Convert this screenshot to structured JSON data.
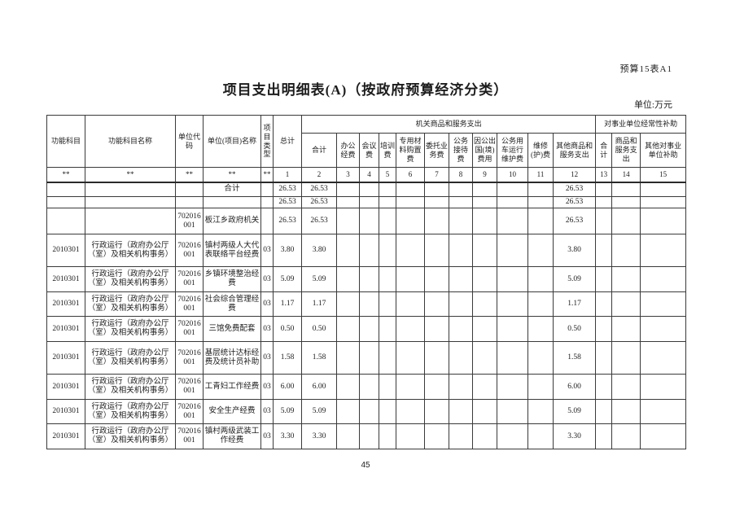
{
  "page": {
    "form_tag": "预算15表A1",
    "title": "项目支出明细表(A)（按政府预算经济分类）",
    "unit_label": "单位:万元",
    "page_number": "45"
  },
  "table": {
    "left_headers": [
      "功能科目",
      "功能科目名称",
      "单位代码",
      "单位(项目)名称",
      "项目类型",
      "总计"
    ],
    "groups": [
      {
        "label": "机关商品和服务支出"
      },
      {
        "label": "对事业单位经常性补助"
      }
    ],
    "sub_headers": [
      "合计",
      "办公经费",
      "会议费",
      "培训费",
      "专用材料购置费",
      "委托业务费",
      "公务接待费",
      "因公出国(境)费用",
      "公务用车运行维护费",
      "维修(护)费",
      "其他商品和服务支出",
      "合计",
      "商品和服务支出",
      "其他对事业单位补助"
    ],
    "code_row": [
      "**",
      "**",
      "**",
      "**",
      "**",
      "1",
      "2",
      "3",
      "4",
      "5",
      "6",
      "7",
      "8",
      "9",
      "10",
      "11",
      "12",
      "13",
      "14",
      "15"
    ],
    "rows": [
      [
        "",
        "",
        "",
        "合计",
        "",
        "26.53",
        "26.53",
        "",
        "",
        "",
        "",
        "",
        "",
        "",
        "",
        "",
        "26.53",
        "",
        "",
        ""
      ],
      [
        "",
        "",
        "",
        "",
        "",
        "26.53",
        "26.53",
        "",
        "",
        "",
        "",
        "",
        "",
        "",
        "",
        "",
        "26.53",
        "",
        "",
        ""
      ],
      [
        "",
        "",
        "702016001",
        "板江乡政府机关",
        "",
        "26.53",
        "26.53",
        "",
        "",
        "",
        "",
        "",
        "",
        "",
        "",
        "",
        "26.53",
        "",
        "",
        ""
      ],
      [
        "2010301",
        "行政运行（政府办公厅（室）及相关机构事务）",
        "702016001",
        "镇村两级人大代表联络平台经费",
        "03",
        "3.80",
        "3.80",
        "",
        "",
        "",
        "",
        "",
        "",
        "",
        "",
        "",
        "3.80",
        "",
        "",
        ""
      ],
      [
        "2010301",
        "行政运行（政府办公厅（室）及相关机构事务）",
        "702016001",
        "乡镇环境整治经费",
        "03",
        "5.09",
        "5.09",
        "",
        "",
        "",
        "",
        "",
        "",
        "",
        "",
        "",
        "5.09",
        "",
        "",
        ""
      ],
      [
        "2010301",
        "行政运行（政府办公厅（室）及相关机构事务）",
        "702016001",
        "社会综合管理经费",
        "03",
        "1.17",
        "1.17",
        "",
        "",
        "",
        "",
        "",
        "",
        "",
        "",
        "",
        "1.17",
        "",
        "",
        ""
      ],
      [
        "2010301",
        "行政运行（政府办公厅（室）及相关机构事务）",
        "702016001",
        "三馆免费配套",
        "03",
        "0.50",
        "0.50",
        "",
        "",
        "",
        "",
        "",
        "",
        "",
        "",
        "",
        "0.50",
        "",
        "",
        ""
      ],
      [
        "2010301",
        "行政运行（政府办公厅（室）及相关机构事务）",
        "702016001",
        "基层统计达标经费及统计员补助",
        "03",
        "1.58",
        "1.58",
        "",
        "",
        "",
        "",
        "",
        "",
        "",
        "",
        "",
        "1.58",
        "",
        "",
        ""
      ],
      [
        "2010301",
        "行政运行（政府办公厅（室）及相关机构事务）",
        "702016001",
        "工青妇工作经费",
        "03",
        "6.00",
        "6.00",
        "",
        "",
        "",
        "",
        "",
        "",
        "",
        "",
        "",
        "6.00",
        "",
        "",
        ""
      ],
      [
        "2010301",
        "行政运行（政府办公厅（室）及相关机构事务）",
        "702016001",
        "安全生产经费",
        "03",
        "5.09",
        "5.09",
        "",
        "",
        "",
        "",
        "",
        "",
        "",
        "",
        "",
        "5.09",
        "",
        "",
        ""
      ],
      [
        "2010301",
        "行政运行（政府办公厅（室）及相关机构事务）",
        "702016001",
        "镇村两级武装工作经费",
        "03",
        "3.30",
        "3.30",
        "",
        "",
        "",
        "",
        "",
        "",
        "",
        "",
        "",
        "3.30",
        "",
        "",
        ""
      ]
    ]
  }
}
